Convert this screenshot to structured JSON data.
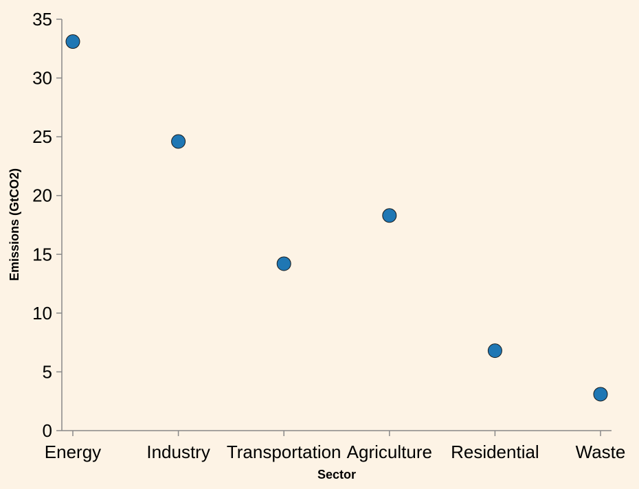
{
  "chart_data": {
    "type": "scatter",
    "title": "",
    "xlabel": "Sector",
    "ylabel": "Emissions (GtCO2)",
    "categories": [
      "Energy",
      "Industry",
      "Transportation",
      "Agriculture",
      "Residential",
      "Waste"
    ],
    "values": [
      33.1,
      24.6,
      14.2,
      18.3,
      6.8,
      3.1
    ],
    "ylim": [
      0,
      35
    ],
    "yticks": [
      "0",
      "5",
      "10",
      "15",
      "20",
      "25",
      "30",
      "35"
    ],
    "grid": false,
    "colors": {
      "point": "#1f77b4",
      "background": "#fdf3e5",
      "axis": "#888888"
    }
  }
}
